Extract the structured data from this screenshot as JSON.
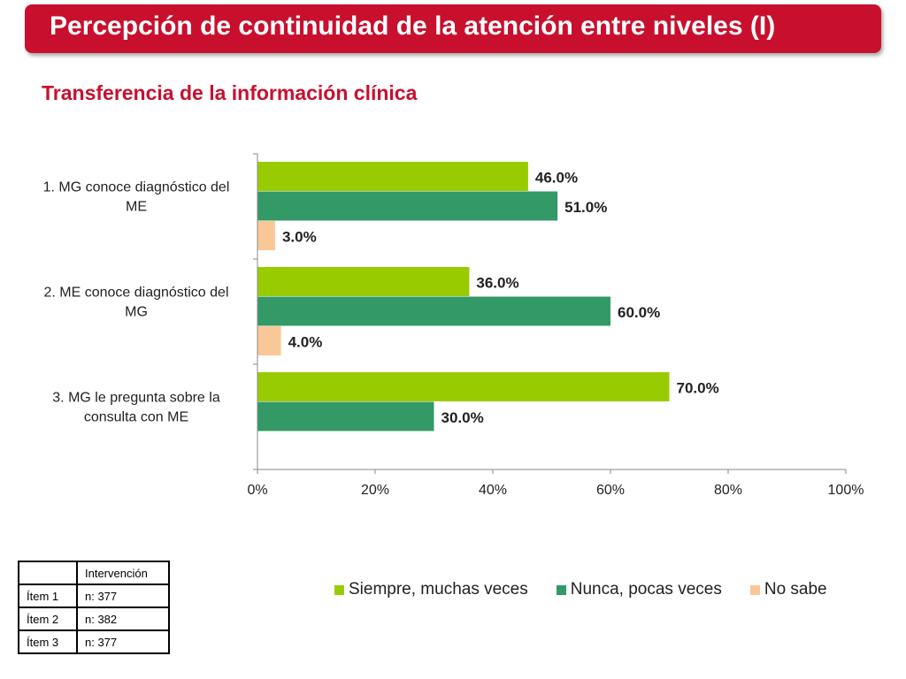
{
  "header": {
    "title": "Percepción de continuidad de la atención entre niveles  (I)",
    "subtitle": "Transferencia de la información clínica"
  },
  "colors": {
    "accent": "#c8102e",
    "series": [
      "#99cc00",
      "#339966",
      "#fac896"
    ]
  },
  "chart_data": {
    "type": "bar",
    "orientation": "horizontal",
    "categories": [
      [
        "1. MG conoce diagnóstico del",
        "ME"
      ],
      [
        "2. ME conoce diagnóstico del",
        "MG"
      ],
      [
        "3. MG le pregunta sobre la",
        "consulta con ME"
      ]
    ],
    "series": [
      {
        "name": "Siempre, muchas veces",
        "values": [
          46.0,
          36.0,
          70.0
        ]
      },
      {
        "name": "Nunca, pocas veces",
        "values": [
          51.0,
          60.0,
          30.0
        ]
      },
      {
        "name": "No sabe",
        "values": [
          3.0,
          4.0,
          null
        ]
      }
    ],
    "xlim": [
      0,
      100
    ],
    "xticks": [
      "0%",
      "20%",
      "40%",
      "60%",
      "80%",
      "100%"
    ],
    "legend_position": "bottom",
    "grid": false
  },
  "table": {
    "header": [
      "",
      "Intervención"
    ],
    "rows": [
      [
        "Ítem 1",
        "n: 377"
      ],
      [
        "Ítem 2",
        "n: 382"
      ],
      [
        "Ítem 3",
        "n: 377"
      ]
    ]
  }
}
